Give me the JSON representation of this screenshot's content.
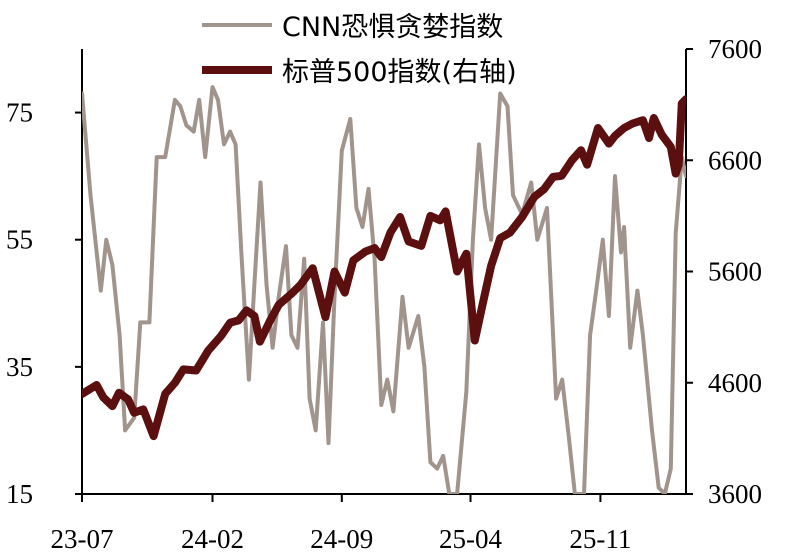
{
  "chart_data": {
    "type": "line",
    "title": "",
    "xlabel": "",
    "x_ticks": [
      "23-07",
      "24-02",
      "24-09",
      "25-04",
      "25-11"
    ],
    "y_left": {
      "ticks": [
        15,
        35,
        55,
        75
      ],
      "range": [
        15,
        85
      ]
    },
    "y_right": {
      "ticks": [
        3600,
        4600,
        5600,
        6600,
        7600
      ],
      "range": [
        3600,
        7600
      ]
    },
    "series": [
      {
        "name": "CNN恐惧贪婪指数",
        "axis": "left",
        "color": "#a0948c",
        "values": [
          [
            "2023-07-01",
            78
          ],
          [
            "2023-07-15",
            62
          ],
          [
            "2023-08-01",
            47
          ],
          [
            "2023-08-10",
            55
          ],
          [
            "2023-08-20",
            51
          ],
          [
            "2023-09-01",
            40
          ],
          [
            "2023-09-10",
            25
          ],
          [
            "2023-09-25",
            27
          ],
          [
            "2023-10-05",
            42
          ],
          [
            "2023-10-20",
            42
          ],
          [
            "2023-11-01",
            68
          ],
          [
            "2023-11-15",
            68
          ],
          [
            "2023-12-01",
            77
          ],
          [
            "2023-12-10",
            76
          ],
          [
            "2023-12-20",
            73
          ],
          [
            "2024-01-01",
            72
          ],
          [
            "2024-01-10",
            77
          ],
          [
            "2024-01-20",
            68
          ],
          [
            "2024-02-01",
            79
          ],
          [
            "2024-02-10",
            77
          ],
          [
            "2024-02-20",
            70
          ],
          [
            "2024-03-01",
            72
          ],
          [
            "2024-03-10",
            70
          ],
          [
            "2024-03-20",
            52
          ],
          [
            "2024-04-01",
            33
          ],
          [
            "2024-04-10",
            48
          ],
          [
            "2024-04-20",
            64
          ],
          [
            "2024-04-30",
            48
          ],
          [
            "2024-05-10",
            38
          ],
          [
            "2024-05-20",
            46
          ],
          [
            "2024-06-01",
            54
          ],
          [
            "2024-06-10",
            40
          ],
          [
            "2024-06-20",
            38
          ],
          [
            "2024-07-01",
            52
          ],
          [
            "2024-07-10",
            30
          ],
          [
            "2024-07-20",
            25
          ],
          [
            "2024-08-01",
            42
          ],
          [
            "2024-08-10",
            23
          ],
          [
            "2024-08-20",
            46
          ],
          [
            "2024-09-01",
            69
          ],
          [
            "2024-09-15",
            74
          ],
          [
            "2024-09-25",
            60
          ],
          [
            "2024-10-05",
            57
          ],
          [
            "2024-10-15",
            63
          ],
          [
            "2024-10-25",
            52
          ],
          [
            "2024-11-05",
            29
          ],
          [
            "2024-11-15",
            33
          ],
          [
            "2024-11-25",
            28
          ],
          [
            "2024-12-10",
            46
          ],
          [
            "2024-12-20",
            38
          ],
          [
            "2025-01-05",
            43
          ],
          [
            "2025-01-15",
            35
          ],
          [
            "2025-01-25",
            20
          ],
          [
            "2025-02-05",
            19
          ],
          [
            "2025-02-15",
            21
          ],
          [
            "2025-02-25",
            15
          ],
          [
            "2025-03-10",
            15
          ],
          [
            "2025-03-25",
            31
          ],
          [
            "2025-04-05",
            55
          ],
          [
            "2025-04-15",
            70
          ],
          [
            "2025-04-25",
            60
          ],
          [
            "2025-05-05",
            55
          ],
          [
            "2025-05-20",
            78
          ],
          [
            "2025-06-01",
            76
          ],
          [
            "2025-06-10",
            62
          ],
          [
            "2025-06-25",
            59
          ],
          [
            "2025-07-10",
            64
          ],
          [
            "2025-07-20",
            55
          ],
          [
            "2025-08-05",
            60
          ],
          [
            "2025-08-20",
            30
          ],
          [
            "2025-08-30",
            33
          ],
          [
            "2025-09-10",
            24
          ],
          [
            "2025-09-20",
            15
          ],
          [
            "2025-10-05",
            15
          ],
          [
            "2025-10-15",
            40
          ],
          [
            "2025-10-25",
            47
          ],
          [
            "2025-11-05",
            55
          ],
          [
            "2025-11-15",
            43
          ],
          [
            "2025-11-25",
            65
          ],
          [
            "2025-12-05",
            53
          ],
          [
            "2025-12-10",
            57
          ],
          [
            "2025-12-20",
            38
          ],
          [
            "2026-01-01",
            47
          ],
          [
            "2026-01-10",
            40
          ],
          [
            "2026-01-25",
            25
          ],
          [
            "2026-02-05",
            16
          ],
          [
            "2026-02-15",
            15
          ],
          [
            "2026-02-25",
            19
          ],
          [
            "2026-03-05",
            56
          ],
          [
            "2026-03-15",
            68
          ],
          [
            "2026-03-22",
            65
          ]
        ]
      },
      {
        "name": "标普500指数(右轴)",
        "axis": "right",
        "color": "#5c0f0f",
        "values": [
          [
            "2023-07-01",
            4500
          ],
          [
            "2023-07-25",
            4580
          ],
          [
            "2023-08-05",
            4470
          ],
          [
            "2023-08-20",
            4390
          ],
          [
            "2023-08-31",
            4510
          ],
          [
            "2023-09-15",
            4450
          ],
          [
            "2023-09-25",
            4330
          ],
          [
            "2023-10-10",
            4360
          ],
          [
            "2023-10-27",
            4120
          ],
          [
            "2023-11-15",
            4500
          ],
          [
            "2023-12-01",
            4600
          ],
          [
            "2023-12-15",
            4720
          ],
          [
            "2024-01-05",
            4710
          ],
          [
            "2024-01-25",
            4890
          ],
          [
            "2024-02-15",
            5020
          ],
          [
            "2024-03-01",
            5140
          ],
          [
            "2024-03-15",
            5160
          ],
          [
            "2024-03-28",
            5250
          ],
          [
            "2024-04-10",
            5200
          ],
          [
            "2024-04-19",
            4970
          ],
          [
            "2024-05-05",
            5150
          ],
          [
            "2024-05-20",
            5300
          ],
          [
            "2024-06-10",
            5400
          ],
          [
            "2024-06-25",
            5480
          ],
          [
            "2024-07-15",
            5630
          ],
          [
            "2024-08-05",
            5190
          ],
          [
            "2024-08-20",
            5600
          ],
          [
            "2024-09-06",
            5410
          ],
          [
            "2024-09-20",
            5700
          ],
          [
            "2024-10-10",
            5780
          ],
          [
            "2024-10-25",
            5810
          ],
          [
            "2024-11-05",
            5730
          ],
          [
            "2024-11-20",
            5950
          ],
          [
            "2024-12-06",
            6090
          ],
          [
            "2024-12-20",
            5870
          ],
          [
            "2025-01-10",
            5830
          ],
          [
            "2025-01-25",
            6100
          ],
          [
            "2025-02-10",
            6060
          ],
          [
            "2025-02-19",
            6140
          ],
          [
            "2025-03-10",
            5600
          ],
          [
            "2025-03-25",
            5760
          ],
          [
            "2025-04-08",
            4980
          ],
          [
            "2025-04-20",
            5280
          ],
          [
            "2025-05-05",
            5650
          ],
          [
            "2025-05-20",
            5900
          ],
          [
            "2025-06-05",
            5950
          ],
          [
            "2025-06-25",
            6090
          ],
          [
            "2025-07-15",
            6270
          ],
          [
            "2025-07-31",
            6340
          ],
          [
            "2025-08-15",
            6450
          ],
          [
            "2025-08-29",
            6460
          ],
          [
            "2025-09-15",
            6600
          ],
          [
            "2025-09-30",
            6690
          ],
          [
            "2025-10-10",
            6560
          ],
          [
            "2025-10-28",
            6890
          ],
          [
            "2025-11-15",
            6750
          ],
          [
            "2025-11-25",
            6820
          ],
          [
            "2025-12-10",
            6890
          ],
          [
            "2025-12-24",
            6930
          ],
          [
            "2026-01-10",
            6960
          ],
          [
            "2026-01-20",
            6800
          ],
          [
            "2026-01-28",
            6980
          ],
          [
            "2026-02-10",
            6830
          ],
          [
            "2026-02-25",
            6720
          ],
          [
            "2026-03-05",
            6480
          ],
          [
            "2026-03-10",
            6560
          ],
          [
            "2026-03-15",
            7110
          ],
          [
            "2026-03-22",
            7150
          ]
        ]
      }
    ],
    "legend_position": "top-center"
  }
}
